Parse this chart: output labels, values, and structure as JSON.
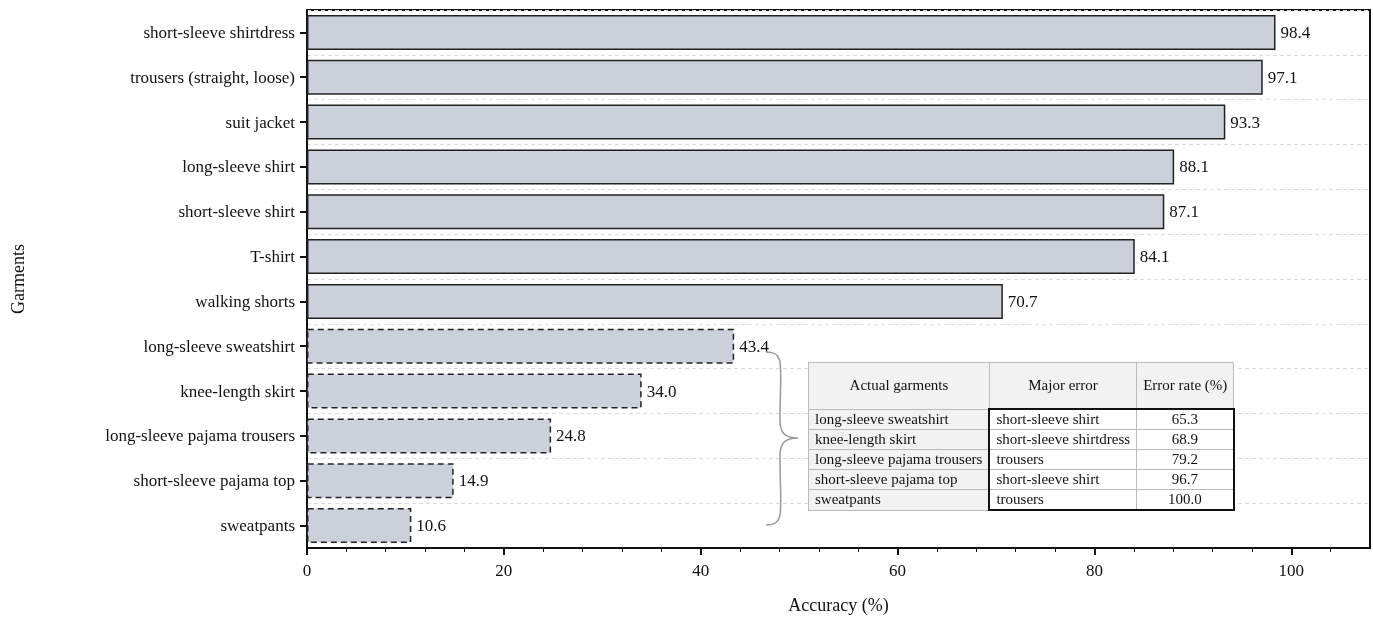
{
  "chart_data": {
    "type": "bar",
    "orientation": "horizontal",
    "stacked": true,
    "xlabel": "Accuracy (%)",
    "ylabel": "Garments",
    "categories": [
      "short-sleeve shirtdress",
      "trousers (straight, loose)",
      "suit jacket",
      "long-sleeve shirt",
      "short-sleeve shirt",
      "T-shirt",
      "walking shorts",
      "long-sleeve sweatshirt",
      "knee-length skirt",
      "long-sleeve pajama trousers",
      "short-sleeve pajama top",
      "sweatpants"
    ],
    "series": [
      {
        "color": "#cbd0db",
        "line_style": "solid",
        "values": [
          98.4,
          97.1,
          93.3,
          88.1,
          87.1,
          84.1,
          70.7,
          null,
          null,
          null,
          null,
          null
        ],
        "value_labels": [
          "98.4",
          "97.1",
          "93.3",
          "88.1",
          "87.1",
          "84.1",
          "70.7",
          null,
          null,
          null,
          null,
          null
        ]
      },
      {
        "color": "#cbd0db",
        "line_style": "dashed",
        "values": [
          null,
          null,
          null,
          null,
          null,
          null,
          null,
          43.4,
          34.0,
          24.8,
          14.9,
          10.6
        ],
        "value_labels": [
          null,
          null,
          null,
          null,
          null,
          null,
          null,
          "43.4",
          "34.0",
          "24.8",
          "14.9",
          "10.6"
        ]
      }
    ],
    "xlim": [
      0,
      108
    ],
    "xticks": [
      0,
      20,
      40,
      60,
      80,
      100
    ],
    "grid": "y",
    "annotations": [
      "Actual garments",
      "Major error",
      "Error rate (%)",
      "long-sleeve sweatshirt",
      "short-sleeve shirt",
      "65.3",
      "knee-length skirt",
      "short-sleeve shirtdress",
      "68.9",
      "long-sleeve pajama trousers",
      "trousers",
      "79.2",
      "short-sleeve pajama top",
      "short-sleeve shirt",
      "96.7",
      "sweatpants",
      "trousers",
      "100.0"
    ]
  }
}
